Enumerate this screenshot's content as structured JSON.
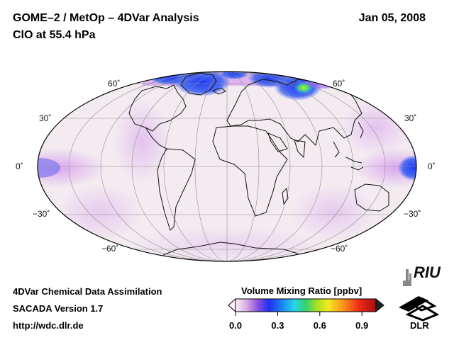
{
  "header": {
    "title_line1": "GOME–2 / MetOp – 4DVar Analysis",
    "title_line2": "ClO at 55.4 hPa",
    "date": "Jan 05, 2008"
  },
  "map": {
    "projection": "Mollweide",
    "latitude_labels": {
      "n60": "60˚",
      "n30": "30˚",
      "eq": "0˚",
      "s30": "−30˚",
      "s60": "−60˚"
    },
    "colors": {
      "background": "#f2e8ef",
      "low_band": "#e6c3ec",
      "high_blue": "#2a55f0"
    }
  },
  "footer": {
    "line1": "4DVar Chemical Data Assimilation",
    "line2": "SACADA Version 1.7",
    "line3": "http://wdc.dlr.de"
  },
  "colorbar": {
    "title": "Volume Mixing Ratio [ppbv]",
    "tick_labels": [
      "0.0",
      "0.3",
      "0.6",
      "0.9"
    ],
    "range": [
      0.0,
      1.0
    ]
  },
  "logos": {
    "riu": "RIU",
    "dlr": "DLR"
  }
}
